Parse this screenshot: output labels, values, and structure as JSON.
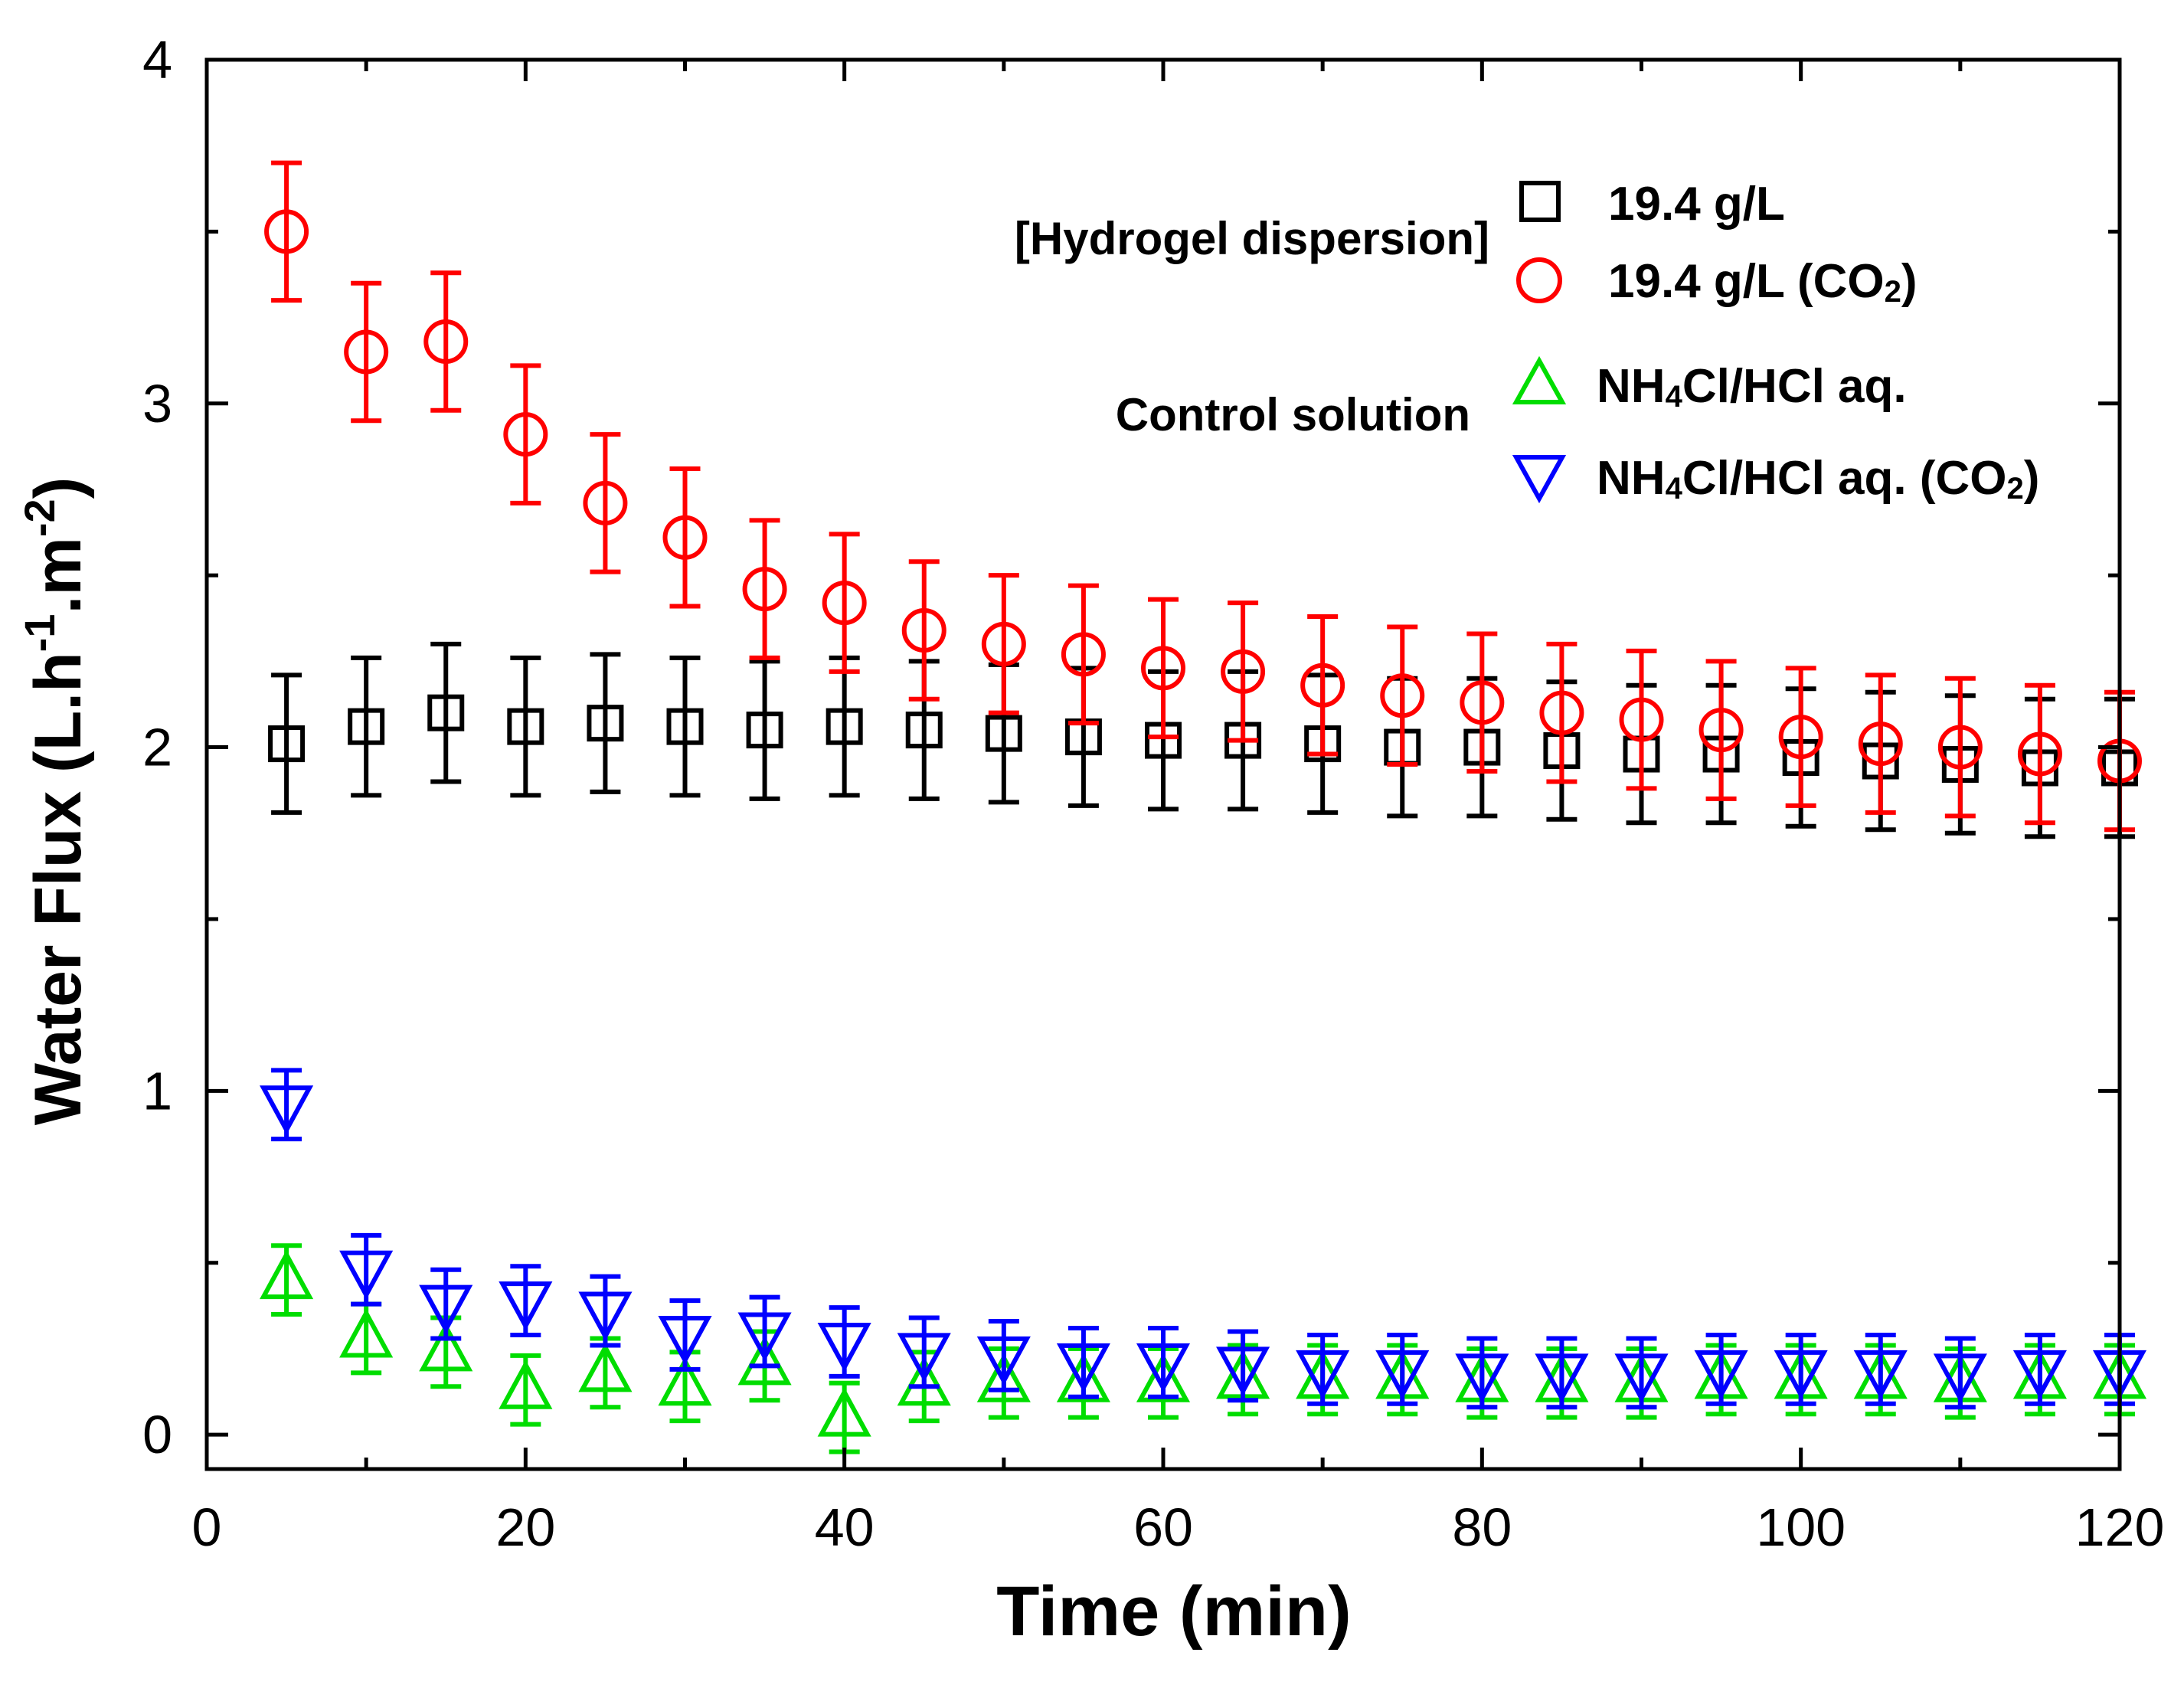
{
  "chart_data": {
    "type": "scatter",
    "title": "",
    "xlabel": "Time (min)",
    "ylabel": {
      "main": "Water Flux (L.h",
      "sup1": "-1",
      "mid": ".m",
      "sup2": "-2",
      "end": ")"
    },
    "xlim": [
      0,
      120
    ],
    "ylim": [
      -0.1,
      4
    ],
    "xticks": [
      0,
      20,
      40,
      60,
      80,
      100,
      120
    ],
    "xtick_labels": [
      "0",
      "20",
      "40",
      "60",
      "80",
      "100",
      "120"
    ],
    "yticks": [
      0,
      1,
      2,
      3,
      4
    ],
    "ytick_labels": [
      "0",
      "1",
      "2",
      "3",
      "4"
    ],
    "x": [
      5,
      10,
      15,
      20,
      25,
      30,
      35,
      40,
      45,
      50,
      55,
      60,
      65,
      70,
      75,
      80,
      85,
      90,
      95,
      100,
      105,
      110,
      115,
      120
    ],
    "series": [
      {
        "name": "19.4 g/L",
        "marker": "square",
        "color": "#000000",
        "values": [
          2.01,
          2.06,
          2.1,
          2.06,
          2.07,
          2.06,
          2.05,
          2.06,
          2.05,
          2.04,
          2.03,
          2.02,
          2.02,
          2.01,
          2.0,
          2.0,
          1.99,
          1.98,
          1.98,
          1.97,
          1.96,
          1.95,
          1.94,
          1.94
        ],
        "errors": [
          0.2,
          0.2,
          0.2,
          0.2,
          0.2,
          0.2,
          0.2,
          0.2,
          0.2,
          0.2,
          0.2,
          0.2,
          0.2,
          0.2,
          0.2,
          0.2,
          0.2,
          0.2,
          0.2,
          0.2,
          0.2,
          0.2,
          0.2,
          0.2
        ]
      },
      {
        "name": "19.4 g/L (CO2)",
        "marker": "circle",
        "color": "#ff0000",
        "values": [
          3.5,
          3.15,
          3.18,
          2.91,
          2.71,
          2.61,
          2.46,
          2.42,
          2.34,
          2.3,
          2.27,
          2.23,
          2.22,
          2.18,
          2.15,
          2.13,
          2.1,
          2.08,
          2.05,
          2.03,
          2.01,
          2.0,
          1.98,
          1.96
        ],
        "errors": [
          0.2,
          0.2,
          0.2,
          0.2,
          0.2,
          0.2,
          0.2,
          0.2,
          0.2,
          0.2,
          0.2,
          0.2,
          0.2,
          0.2,
          0.2,
          0.2,
          0.2,
          0.2,
          0.2,
          0.2,
          0.2,
          0.2,
          0.2,
          0.2
        ]
      },
      {
        "name": "NH4Cl/HCl aq.",
        "marker": "triangle-up",
        "color": "#00dd00",
        "values": [
          0.45,
          0.28,
          0.24,
          0.13,
          0.18,
          0.14,
          0.2,
          0.05,
          0.14,
          0.15,
          0.15,
          0.15,
          0.16,
          0.16,
          0.16,
          0.15,
          0.15,
          0.15,
          0.16,
          0.16,
          0.16,
          0.15,
          0.16,
          0.16
        ],
        "errors": [
          0.1,
          0.1,
          0.1,
          0.1,
          0.1,
          0.1,
          0.1,
          0.1,
          0.1,
          0.1,
          0.1,
          0.1,
          0.1,
          0.1,
          0.1,
          0.1,
          0.1,
          0.1,
          0.1,
          0.1,
          0.1,
          0.1,
          0.1,
          0.1
        ]
      },
      {
        "name": "NH4Cl/HCl aq. (CO2)",
        "marker": "triangle-down",
        "color": "#0000ff",
        "values": [
          0.96,
          0.48,
          0.38,
          0.39,
          0.36,
          0.29,
          0.3,
          0.27,
          0.24,
          0.23,
          0.21,
          0.21,
          0.2,
          0.19,
          0.19,
          0.18,
          0.18,
          0.18,
          0.19,
          0.19,
          0.19,
          0.18,
          0.19,
          0.19
        ],
        "errors": [
          0.1,
          0.1,
          0.1,
          0.1,
          0.1,
          0.1,
          0.1,
          0.1,
          0.1,
          0.1,
          0.1,
          0.1,
          0.1,
          0.1,
          0.1,
          0.1,
          0.1,
          0.1,
          0.1,
          0.1,
          0.1,
          0.1,
          0.1,
          0.1
        ]
      }
    ],
    "legend": {
      "position": "top-right",
      "group_labels": [
        "[Hydrogel dispersion]",
        "Control solution"
      ],
      "entries": [
        {
          "text": "19.4 g/L",
          "sub": "",
          "tail": ""
        },
        {
          "text": "19.4 g/L (CO",
          "sub": "2",
          "tail": ")"
        },
        {
          "text": "NH",
          "sub": "4",
          "tail": "Cl/HCl aq."
        },
        {
          "text": "NH",
          "sub": "4",
          "tail": "Cl/HCl aq. (CO",
          "sub2": "2",
          "tail2": ")"
        }
      ]
    },
    "grid": false
  }
}
